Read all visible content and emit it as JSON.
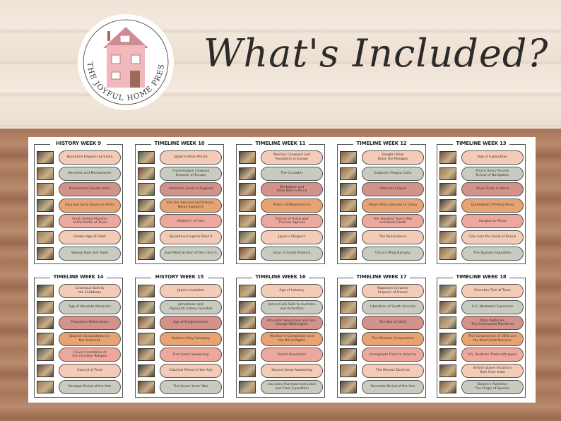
{
  "brand": {
    "name": "THE JOYFUL HOME PRESS CO"
  },
  "headline": "What's Included?",
  "colors": {
    "peach": "#f3cbb6",
    "sage": "#c8cbbf",
    "rose": "#d3928a",
    "orange": "#e8a372",
    "pink": "#eda89e"
  },
  "pill_color_order": [
    "peach",
    "sage",
    "rose",
    "orange",
    "pink",
    "peach",
    "sage"
  ],
  "cards": [
    {
      "title": "HISTORY WEEK 9",
      "items": [
        "Byzantine Emperor Justinian",
        "Benedict and Monasticism",
        "Muhammad Founds Islam",
        "Zanj and Early Ghana in Africa",
        "Frank Defeat Muslims\nat the Battle of Tours",
        "Golden Age of Islam",
        "Vikings Raid and Trade"
      ]
    },
    {
      "title": "TIMELINE WEEK 10",
      "items": [
        "Japan's Heian Period",
        "Charlemagne Crowned\nEmperor of Europe",
        "Alfred the Great of England",
        "Erik the Red and Leif Erikson,\nNorse Explorers",
        "Vladimir I of Kiev",
        "Byzantine Emperor Basil II",
        "East-West Schism of the Church"
      ]
    },
    {
      "title": "TIMELINE WEEK 11",
      "items": [
        "Norman Conquest and\nFeudalism in Europe",
        "The Crusades",
        "Zimbabwe and\nEarly Mali in Africa",
        "Aztecs of Mesoamerica",
        "Francis of Assisi and\nThomas Aquinas",
        "Japan's Shoguns",
        "Incas of South America"
      ]
    },
    {
      "title": "TIMELINE WEEK 12",
      "items": [
        "Genghis Khan\nRules the Mongols",
        "England's Magna Carta",
        "Ottoman Empire",
        "Marco Polo's Journey to China",
        "The Hundred Year's War\nand Black Death",
        "The Renaissance",
        "China's Ming Dynasty"
      ]
    },
    {
      "title": "TIMELINE WEEK 13",
      "items": [
        "Age of Exploration",
        "Prince Henry Founds\nSchool of Navigation",
        "Slave Trade in Africa",
        "Gutenberg's Printing Press",
        "Songhai in Africa",
        "Czar Ivan the Great of Russia",
        "The Spanish Inquisition"
      ]
    },
    {
      "title": "TIMELINE WEEK 14",
      "items": [
        "Columbus Sails to\nthe Caribbean",
        "Age of Absolute Monarchs",
        "Protestant Reformation",
        "Spanish Conquistadors in\nthe Americas",
        "Calvin's Institutes of\nthe Christian Religion",
        "Council of Trent",
        "Baroque Period of the Arts"
      ]
    },
    {
      "title": "HISTORY WEEK 15",
      "items": [
        "Japan's Isolation",
        "Jamestown and\nPlymouth Colony Founded",
        "Age of Enlightenment",
        "Hudson's Bay Company",
        "First Great Awakening",
        "Classical Period of the Arts",
        "The Seven Years' War"
      ]
    },
    {
      "title": "TIMELINE WEEK 16",
      "items": [
        "Age of Industry",
        "James Cook Sails to Australia\nand Antarctica",
        "American Revolution and Gen.\nGeorge Washington",
        "Madison's Constitution and\nthe Bill of Rights",
        "French Revolution",
        "Second Great Awakening",
        "Louisiana Purchase and Lewis\nand Clark Expedition"
      ]
    },
    {
      "title": "TIMELINE WEEK 17",
      "items": [
        "Napoleon Crowned\nEmperor of France",
        "Liberation of South America",
        "The War of 1812",
        "The Missouri Compromise",
        "Immigrants Flock to America",
        "The Monroe Doctrine",
        "Romantic Period of the Arts"
      ]
    },
    {
      "title": "TIMELINE WEEK 18",
      "items": [
        "Cherokee Trail of Tears",
        "U.S. Westward Expansion",
        "Marx Publishes\nThe Communist Manifesto",
        "The Compromise of 1850 and\nthe Dred Scott Decision",
        "U.S. Restores Trade with Japan",
        "British Queen Victoria's\nRule Over India",
        "Darwin's Publishes\nThe Origin of Species"
      ]
    }
  ]
}
